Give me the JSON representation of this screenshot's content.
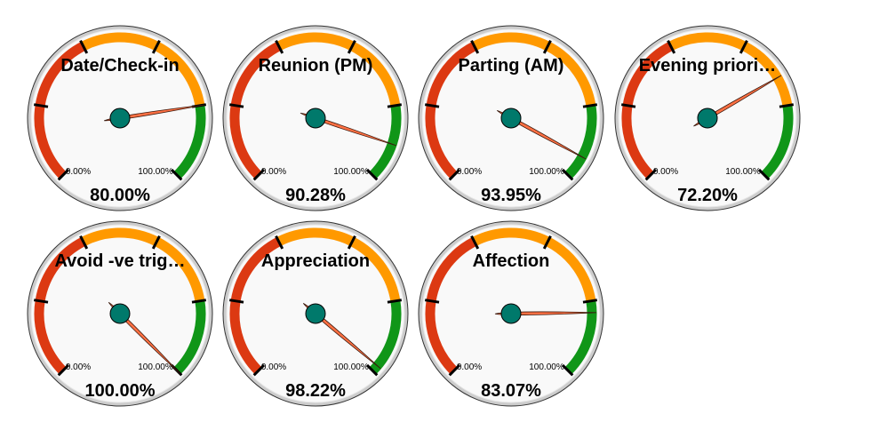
{
  "chart_data": [
    {
      "type": "gauge",
      "title": "Date/Check-in",
      "value": 80.0,
      "display": "80.00%",
      "min_label": "0.00%",
      "max_label": "100.00%",
      "range": [
        0,
        100
      ]
    },
    {
      "type": "gauge",
      "title": "Reunion (PM)",
      "value": 90.28,
      "display": "90.28%",
      "min_label": "0.00%",
      "max_label": "100.00%",
      "range": [
        0,
        100
      ]
    },
    {
      "type": "gauge",
      "title": "Parting (AM)",
      "value": 93.95,
      "display": "93.95%",
      "min_label": "0.00%",
      "max_label": "100.00%",
      "range": [
        0,
        100
      ]
    },
    {
      "type": "gauge",
      "title": "Evening priori…",
      "value": 72.2,
      "display": "72.20%",
      "min_label": "0.00%",
      "max_label": "100.00%",
      "range": [
        0,
        100
      ]
    },
    {
      "type": "gauge",
      "title": "Avoid -ve trig…",
      "value": 100.0,
      "display": "100.00%",
      "min_label": "0.00%",
      "max_label": "100.00%",
      "range": [
        0,
        100
      ]
    },
    {
      "type": "gauge",
      "title": "Appreciation",
      "value": 98.22,
      "display": "98.22%",
      "min_label": "0.00%",
      "max_label": "100.00%",
      "range": [
        0,
        100
      ]
    },
    {
      "type": "gauge",
      "title": "Affection",
      "value": 83.07,
      "display": "83.07%",
      "min_label": "0.00%",
      "max_label": "100.00%",
      "range": [
        0,
        100
      ]
    }
  ],
  "bands": [
    {
      "from": 0,
      "to": 40,
      "color": "#dc3912"
    },
    {
      "from": 40,
      "to": 80,
      "color": "#ff9900"
    },
    {
      "from": 80,
      "to": 100,
      "color": "#109618"
    }
  ],
  "colors": {
    "needle": "#ff7043",
    "hub": "#00796b",
    "face": "#f9f9f9",
    "rim": "#cccccc",
    "rim_outer": "#333333"
  }
}
